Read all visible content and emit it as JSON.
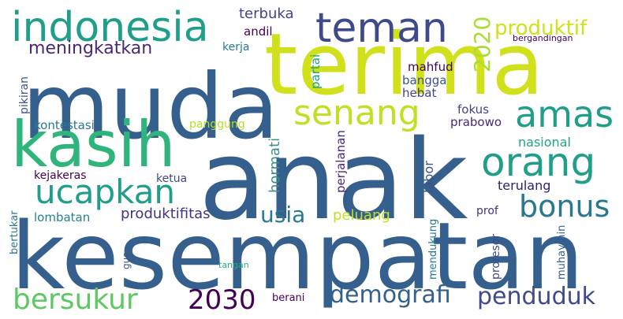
{
  "word_cloud": {
    "words": [
      {
        "id": "anak",
        "text": "anak",
        "color": "#355f8d"
      },
      {
        "id": "kesempatan",
        "text": "kesempatan",
        "color": "#355f8d"
      },
      {
        "id": "terima",
        "text": "terima",
        "color": "#d0e11c"
      },
      {
        "id": "muda",
        "text": "muda",
        "color": "#355f8d"
      },
      {
        "id": "kasih",
        "text": "kasih",
        "color": "#2fb47c"
      },
      {
        "id": "indonesia",
        "text": "indonesia",
        "color": "#1f9e89"
      },
      {
        "id": "teman",
        "text": "teman",
        "color": "#3e4a89"
      },
      {
        "id": "senang",
        "text": "senang",
        "color": "#c2df23"
      },
      {
        "id": "amas",
        "text": "amas",
        "color": "#1f9e89"
      },
      {
        "id": "orang",
        "text": "orang",
        "color": "#1f9e89"
      },
      {
        "id": "ucapkan",
        "text": "ucapkan",
        "color": "#1f9e89"
      },
      {
        "id": "bonus",
        "text": "bonus",
        "color": "#2a788e"
      },
      {
        "id": "usia",
        "text": "usia",
        "color": "#2a788e"
      },
      {
        "id": "bersukur",
        "text": "bersukur",
        "color": "#5ec962"
      },
      {
        "id": "2030",
        "text": "2030",
        "color": "#440154"
      },
      {
        "id": "demografi",
        "text": "demografi",
        "color": "#355f8d"
      },
      {
        "id": "penduduk",
        "text": "penduduk",
        "color": "#3e4a89"
      },
      {
        "id": "produktif",
        "text": "produktif",
        "color": "#cde11d"
      },
      {
        "id": "2020",
        "text": "2020",
        "color": "#aadc32"
      },
      {
        "id": "meningkatkan",
        "text": "meningkatkan",
        "color": "#482878"
      },
      {
        "id": "terbuka",
        "text": "terbuka",
        "color": "#414487"
      },
      {
        "id": "andil",
        "text": "andil",
        "color": "#440154"
      },
      {
        "id": "kerja",
        "text": "kerja",
        "color": "#2a788e"
      },
      {
        "id": "partai",
        "text": "partai",
        "color": "#1f9e89"
      },
      {
        "id": "pikiran",
        "text": "pikiran",
        "color": "#3b528b"
      },
      {
        "id": "mahfud",
        "text": "mahfud",
        "color": "#440154"
      },
      {
        "id": "bangga",
        "text": "bangga",
        "color": "#3b528b"
      },
      {
        "id": "hebat",
        "text": "hebat",
        "color": "#414487"
      },
      {
        "id": "fokus",
        "text": "fokus",
        "color": "#414487"
      },
      {
        "id": "prabowo",
        "text": "prabowo",
        "color": "#482878"
      },
      {
        "id": "bergandingan",
        "text": "bergandingan",
        "color": "#440154"
      },
      {
        "id": "kontestasi",
        "text": "kontestasi",
        "color": "#2a788e"
      },
      {
        "id": "panggung",
        "text": "panggung",
        "color": "#b5de2b"
      },
      {
        "id": "hormati",
        "text": "hormati",
        "color": "#3b8f8a"
      },
      {
        "id": "nasional",
        "text": "nasional",
        "color": "#21a585"
      },
      {
        "id": "labor",
        "text": "labor",
        "color": "#3b528b"
      },
      {
        "id": "perjalanan",
        "text": "perjalanan",
        "color": "#482878"
      },
      {
        "id": "terulang",
        "text": "terulang",
        "color": "#2d1e6f"
      },
      {
        "id": "kejakeras",
        "text": "kejakeras",
        "color": "#440154"
      },
      {
        "id": "ketua",
        "text": "ketua",
        "color": "#3e4a89"
      },
      {
        "id": "produktifitas",
        "text": "produktifitas",
        "color": "#46337f"
      },
      {
        "id": "peluang",
        "text": "peluang",
        "color": "#c2df23"
      },
      {
        "id": "lombatan",
        "text": "lombatan",
        "color": "#26828e"
      },
      {
        "id": "bertukar",
        "text": "bertukar",
        "color": "#2a788e"
      },
      {
        "id": "mendukung",
        "text": "mendukung",
        "color": "#2a788e"
      },
      {
        "id": "prof",
        "text": "prof",
        "color": "#46337f"
      },
      {
        "id": "profesor",
        "text": "profesor",
        "color": "#3e4a89"
      },
      {
        "id": "muhaymin",
        "text": "muhaymin",
        "color": "#355f8d"
      },
      {
        "id": "gus",
        "text": "gus",
        "color": "#3b528b"
      },
      {
        "id": "tangan",
        "text": "tangan",
        "color": "#29af7f"
      },
      {
        "id": "berani",
        "text": "berani",
        "color": "#440154"
      }
    ]
  }
}
